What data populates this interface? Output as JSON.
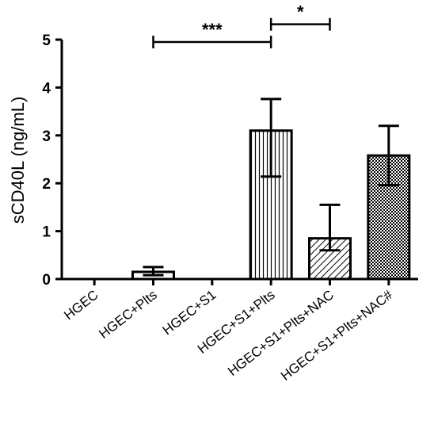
{
  "chart_data": {
    "type": "bar",
    "ylabel": "sCD40L (ng/mL)",
    "xlabel": "",
    "ylim": [
      0,
      5
    ],
    "yticks": [
      "0",
      "1",
      "2",
      "3",
      "4",
      "5"
    ],
    "categories": [
      "HGEC",
      "HGEC+Plts",
      "HGEC+S1",
      "HGEC+S1+Plts",
      "HGEC+S1+Plts+NAC",
      "HGEC+S1+Plts+NAC#"
    ],
    "values": [
      0.0,
      0.15,
      0.0,
      3.1,
      0.85,
      2.58
    ],
    "error_upper": [
      0.0,
      0.25,
      0.0,
      3.76,
      1.55,
      3.2
    ],
    "error_lower": [
      0.0,
      0.08,
      0.0,
      2.14,
      0.6,
      1.96
    ],
    "fill_patterns": [
      "none",
      "none",
      "none",
      "vertical-lines",
      "diagonal-lines",
      "checkerboard"
    ],
    "significance": [
      {
        "from": 1,
        "to": 3,
        "label": "***",
        "y": 4.95
      },
      {
        "from": 3,
        "to": 4,
        "label": "*",
        "y": 5.32
      }
    ],
    "grid": false,
    "legend": "none"
  }
}
